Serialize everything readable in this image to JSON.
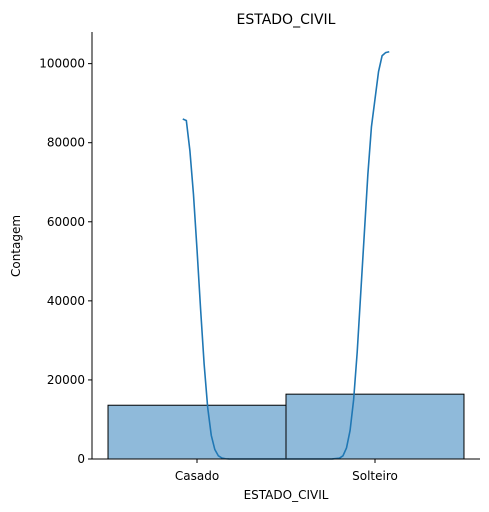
{
  "chart_data": {
    "type": "bar",
    "title": "ESTADO_CIVIL",
    "xlabel": "ESTADO_CIVIL",
    "ylabel": "Contagem",
    "categories": [
      "Casado",
      "Solteiro"
    ],
    "values": [
      13600,
      16400
    ],
    "ylim": [
      0,
      108000
    ],
    "yticks": [
      0,
      20000,
      40000,
      60000,
      80000,
      100000
    ],
    "ytick_labels": [
      "0",
      "20000",
      "40000",
      "60000",
      "80000",
      "100000"
    ],
    "grid": false,
    "legend": "none",
    "kde_curve": {
      "x": [
        -0.08,
        -0.06,
        -0.04,
        -0.02,
        0.0,
        0.02,
        0.04,
        0.06,
        0.08,
        0.1,
        0.12,
        0.14,
        0.16,
        0.18,
        0.2,
        0.24,
        0.3,
        0.4,
        0.5,
        0.6,
        0.7,
        0.76,
        0.8,
        0.82,
        0.84,
        0.86,
        0.88,
        0.9,
        0.92,
        0.94,
        0.96,
        0.98,
        1.0,
        1.02,
        1.04,
        1.06,
        1.08
      ],
      "y": [
        86000,
        85600,
        78000,
        67000,
        53000,
        38000,
        24000,
        13000,
        6000,
        2400,
        800,
        250,
        60,
        10,
        0,
        0,
        0,
        0,
        0,
        0,
        0,
        20,
        200,
        800,
        2800,
        7200,
        15000,
        27000,
        42000,
        57000,
        72000,
        84000,
        91000,
        98000,
        102000,
        102800,
        103000
      ]
    },
    "colors": {
      "bar_fill": "#8fbada",
      "bar_edge": "#000000",
      "line": "#1f77b4"
    }
  }
}
